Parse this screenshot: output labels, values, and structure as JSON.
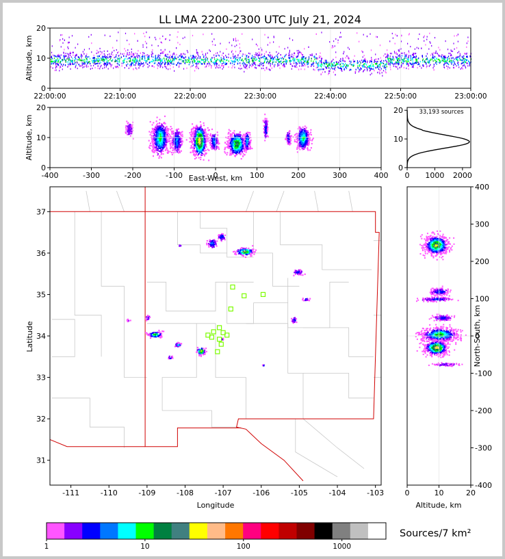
{
  "title": "LL LMA 2200-2300 UTC July 21, 2024",
  "colors": {
    "map_outline": "#c8c8c8",
    "border_red": "#d00000",
    "station": "#7cfc00",
    "frame": "#c8c8c8"
  },
  "chart_data": [
    {
      "id": "time_height",
      "type": "heatmap",
      "ylabel": "Altitude, km",
      "ylim": [
        0,
        20
      ],
      "yticks": [
        "0",
        "10",
        "20"
      ],
      "xticks": [
        "22:00:00",
        "22:10:00",
        "22:20:00",
        "22:30:00",
        "22:40:00",
        "22:50:00",
        "23:00:00"
      ],
      "xrange_minutes": [
        0,
        60
      ],
      "band": {
        "center_km": 9.5,
        "spread_km": 3.5,
        "top_km": 19,
        "dip": {
          "from_min": 38,
          "to_min": 48,
          "center_km": 7
        }
      }
    },
    {
      "id": "ew_height",
      "type": "heatmap",
      "xlabel": "East-West, km",
      "ylabel": "Altitude, km",
      "xlim": [
        -400,
        400
      ],
      "ylim": [
        0,
        20
      ],
      "xticks": [
        "-400",
        "-300",
        "-200",
        "-100",
        "0",
        "100",
        "200",
        "300",
        "400"
      ],
      "yticks": [
        "0",
        "10",
        "20"
      ],
      "clusters": [
        {
          "x": -135,
          "w": 22,
          "alt": 10,
          "h": 7,
          "peak": 5
        },
        {
          "x": -95,
          "w": 14,
          "alt": 9,
          "h": 5,
          "peak": 3
        },
        {
          "x": -40,
          "w": 20,
          "alt": 9,
          "h": 7,
          "peak": 9
        },
        {
          "x": -5,
          "w": 10,
          "alt": 9,
          "h": 4,
          "peak": 3
        },
        {
          "x": 50,
          "w": 25,
          "alt": 8,
          "h": 5,
          "peak": 7
        },
        {
          "x": 75,
          "w": 8,
          "alt": 9,
          "h": 4,
          "peak": 4
        },
        {
          "x": 120,
          "w": 5,
          "alt": 13,
          "h": 5,
          "peak": 2
        },
        {
          "x": 175,
          "w": 6,
          "alt": 10,
          "h": 3,
          "peak": 2
        },
        {
          "x": 210,
          "w": 18,
          "alt": 10,
          "h": 5,
          "peak": 5
        },
        {
          "x": -210,
          "w": 8,
          "alt": 13,
          "h": 3,
          "peak": 1
        }
      ]
    },
    {
      "id": "altitude_histogram",
      "type": "line",
      "annotation": "33,193 sources",
      "xlim": [
        0,
        2300
      ],
      "ylim": [
        0,
        21
      ],
      "xticks": [
        "0",
        "1000",
        "2000"
      ],
      "yticks": [
        "0",
        "10",
        "20"
      ],
      "profile_peak": {
        "alt_km": 9,
        "count": 2250,
        "lower_sigma": 2.2,
        "upper_sigma": 2.4
      }
    },
    {
      "id": "plan_view",
      "type": "heatmap",
      "xlabel": "Longitude",
      "ylabel": "Latitude",
      "xlim": [
        -111.55,
        -102.85
      ],
      "ylim": [
        30.4,
        37.6
      ],
      "xticks": [
        "-111",
        "-110",
        "-109",
        "-108",
        "-107",
        "-106",
        "-105",
        "-104",
        "-103"
      ],
      "yticks": [
        "31",
        "32",
        "33",
        "34",
        "35",
        "36",
        "37"
      ],
      "clusters": [
        {
          "lon": -107.3,
          "lat": 36.25,
          "w": 0.12,
          "h": 0.12,
          "peak": 3
        },
        {
          "lon": -107.05,
          "lat": 36.4,
          "w": 0.1,
          "h": 0.08,
          "peak": 3
        },
        {
          "lon": -106.45,
          "lat": 36.05,
          "w": 0.25,
          "h": 0.1,
          "peak": 8
        },
        {
          "lon": -105.05,
          "lat": 35.55,
          "w": 0.12,
          "h": 0.07,
          "peak": 2
        },
        {
          "lon": -104.85,
          "lat": 34.9,
          "w": 0.1,
          "h": 0.04,
          "peak": 2
        },
        {
          "lon": -105.15,
          "lat": 34.4,
          "w": 0.07,
          "h": 0.08,
          "peak": 2
        },
        {
          "lon": -108.8,
          "lat": 34.05,
          "w": 0.2,
          "h": 0.08,
          "peak": 6
        },
        {
          "lon": -108.2,
          "lat": 33.8,
          "w": 0.1,
          "h": 0.05,
          "peak": 4
        },
        {
          "lon": -107.6,
          "lat": 33.65,
          "w": 0.12,
          "h": 0.1,
          "peak": 9
        },
        {
          "lon": -108.4,
          "lat": 33.5,
          "w": 0.06,
          "h": 0.04,
          "peak": 3
        },
        {
          "lon": -109.0,
          "lat": 34.45,
          "w": 0.06,
          "h": 0.06,
          "peak": 2
        },
        {
          "lon": -109.5,
          "lat": 34.4,
          "w": 0.04,
          "h": 0.04,
          "peak": 1
        },
        {
          "lon": -107.05,
          "lat": 33.95,
          "w": 0.03,
          "h": 0.03,
          "peak": 9
        },
        {
          "lon": -105.95,
          "lat": 33.3,
          "w": 0.03,
          "h": 0.03,
          "peak": 2
        },
        {
          "lon": -108.15,
          "lat": 36.2,
          "w": 0.03,
          "h": 0.02,
          "peak": 1
        }
      ],
      "stations": [
        {
          "lon": -106.75,
          "lat": 35.18
        },
        {
          "lon": -106.45,
          "lat": 34.97
        },
        {
          "lon": -105.95,
          "lat": 35.0
        },
        {
          "lon": -106.8,
          "lat": 34.65
        },
        {
          "lon": -107.1,
          "lat": 34.2
        },
        {
          "lon": -107.25,
          "lat": 34.1
        },
        {
          "lon": -107.4,
          "lat": 34.02
        },
        {
          "lon": -107.3,
          "lat": 33.97
        },
        {
          "lon": -107.0,
          "lat": 34.08
        },
        {
          "lon": -106.9,
          "lat": 34.02
        },
        {
          "lon": -107.05,
          "lat": 33.8
        },
        {
          "lon": -107.15,
          "lat": 33.62
        },
        {
          "lon": -107.1,
          "lat": 33.92
        }
      ]
    },
    {
      "id": "ns_height",
      "type": "heatmap",
      "xlabel": "Altitude, km",
      "ylabel": "North-South, km",
      "xlim": [
        0,
        20
      ],
      "ylim": [
        -400,
        400
      ],
      "xticks": [
        "0",
        "10",
        "20"
      ],
      "yticks": [
        "-400",
        "-300",
        "-200",
        "-100",
        "0",
        "100",
        "200",
        "300",
        "400"
      ],
      "clusters": [
        {
          "y": 245,
          "h": 28,
          "alt": 9,
          "w": 4,
          "peak": 8
        },
        {
          "y": 120,
          "h": 10,
          "alt": 10,
          "w": 3,
          "peak": 2
        },
        {
          "y": 100,
          "h": 6,
          "alt": 9,
          "w": 5,
          "peak": 2
        },
        {
          "y": 50,
          "h": 8,
          "alt": 11,
          "w": 3,
          "peak": 2
        },
        {
          "y": 5,
          "h": 20,
          "alt": 10,
          "w": 6,
          "peak": 6
        },
        {
          "y": -30,
          "h": 22,
          "alt": 9,
          "w": 4,
          "peak": 9
        },
        {
          "y": -75,
          "h": 4,
          "alt": 12,
          "w": 4,
          "peak": 1
        }
      ]
    },
    {
      "id": "colorbar",
      "type": "bar",
      "label": "Sources/7 km²",
      "tick_labels": [
        "1",
        "10",
        "100",
        "1000"
      ],
      "colors": [
        "#ff55ff",
        "#8800ff",
        "#0000ff",
        "#0077ff",
        "#00ffff",
        "#00ff00",
        "#008040",
        "#408080",
        "#ffff00",
        "#ffbb88",
        "#ff7700",
        "#ff0080",
        "#ff0000",
        "#c00000",
        "#800000",
        "#000000",
        "#808080",
        "#c0c0c0",
        "#ffffff"
      ]
    }
  ]
}
